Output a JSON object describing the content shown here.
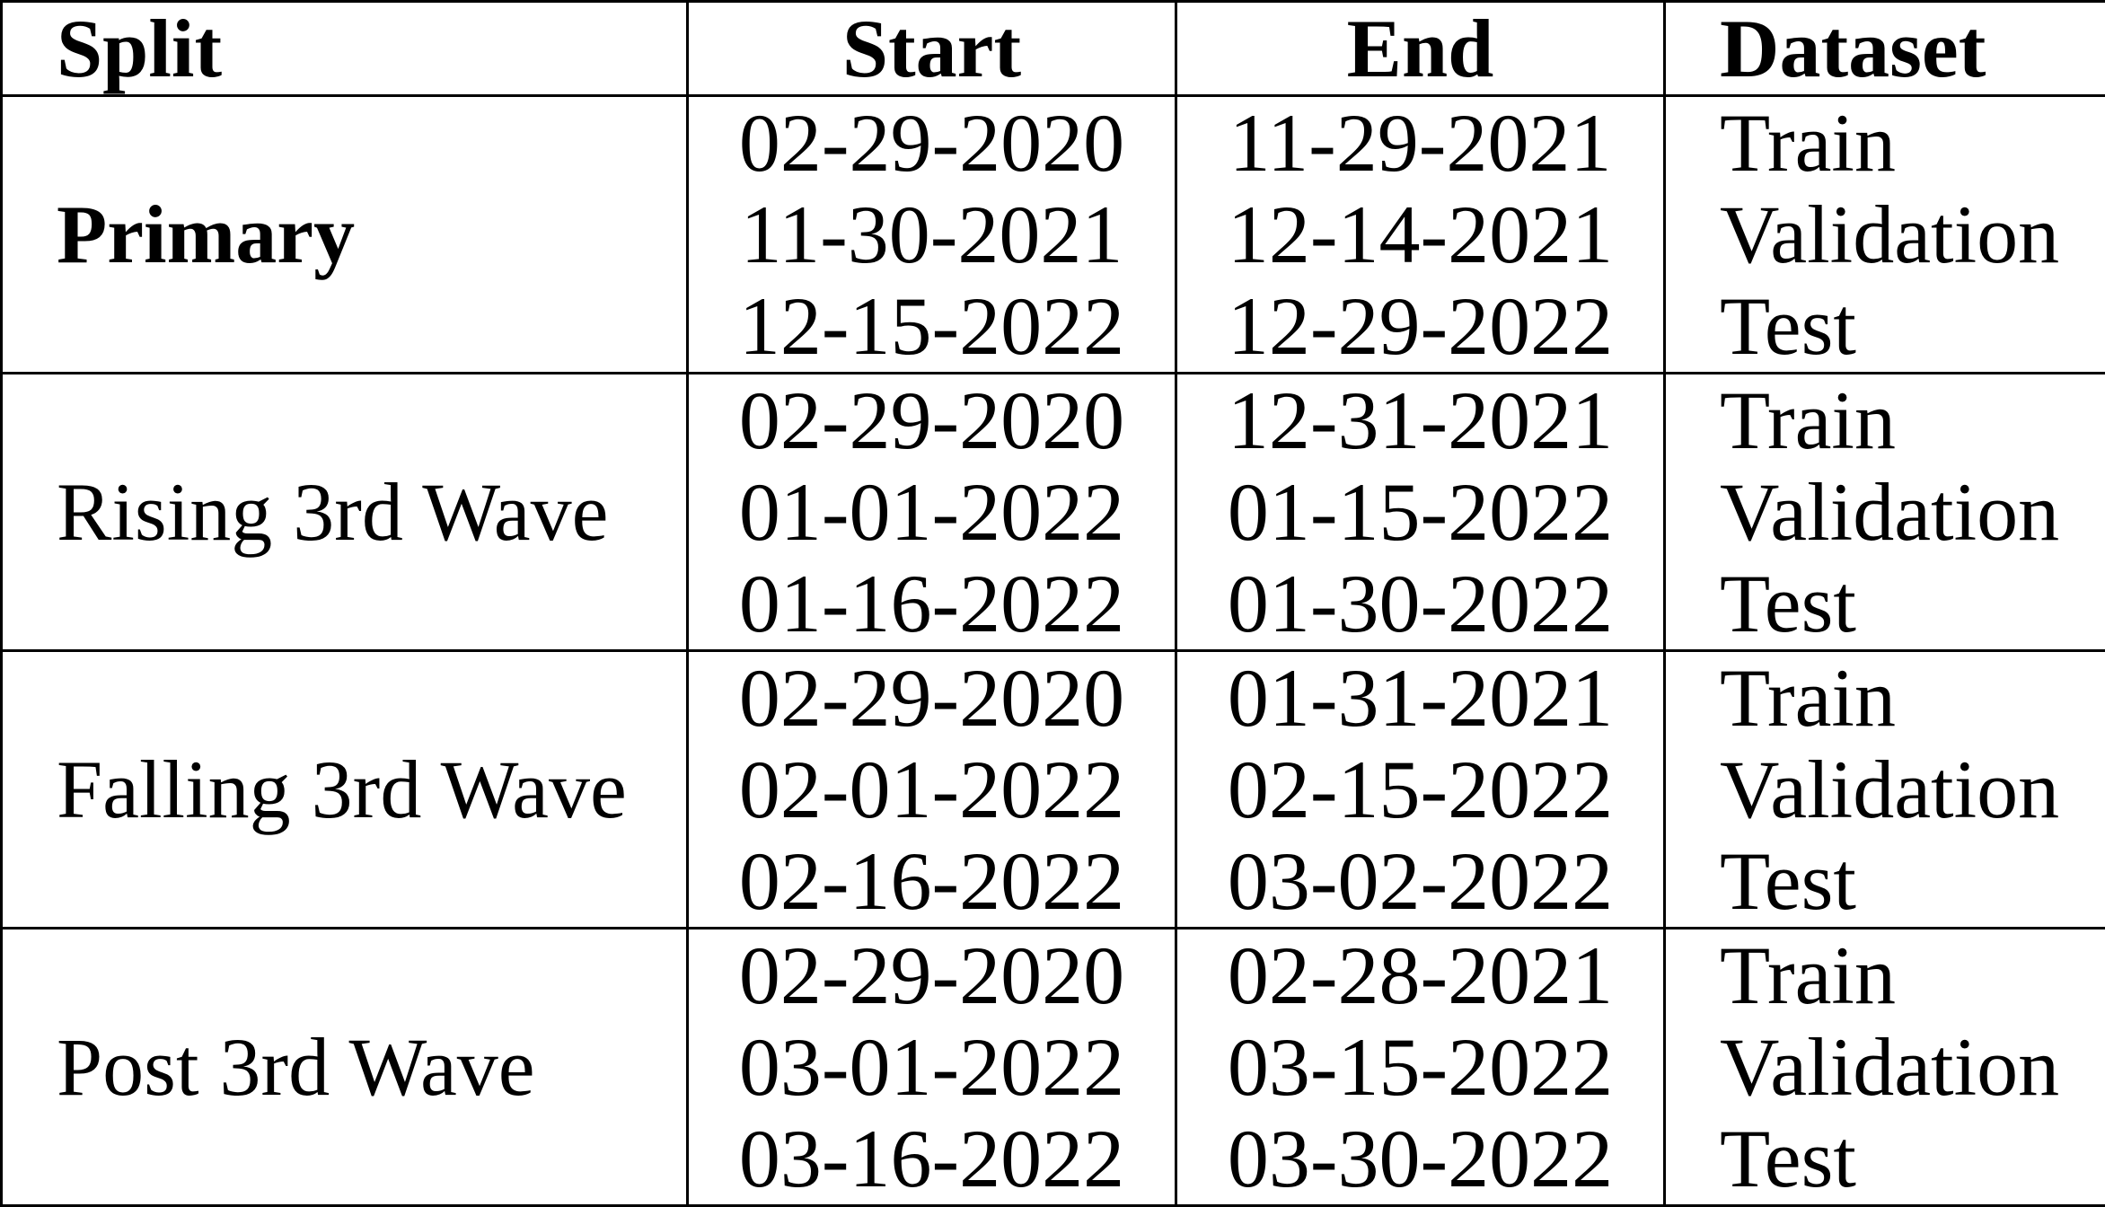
{
  "table": {
    "headers": {
      "split": "Split",
      "start": "Start",
      "end": "End",
      "dataset": "Dataset"
    },
    "groups": [
      {
        "split": "Primary",
        "start": [
          "02-29-2020",
          "11-30-2021",
          "12-15-2022"
        ],
        "end": [
          "11-29-2021",
          "12-14-2021",
          "12-29-2022"
        ],
        "dataset": [
          "Train",
          "Validation",
          "Test"
        ]
      },
      {
        "split": "Rising 3rd Wave",
        "start": [
          "02-29-2020",
          "01-01-2022",
          "01-16-2022"
        ],
        "end": [
          "12-31-2021",
          "01-15-2022",
          "01-30-2022"
        ],
        "dataset": [
          "Train",
          "Validation",
          "Test"
        ]
      },
      {
        "split": "Falling 3rd Wave",
        "start": [
          "02-29-2020",
          "02-01-2022",
          "02-16-2022"
        ],
        "end": [
          "01-31-2021",
          "02-15-2022",
          "03-02-2022"
        ],
        "dataset": [
          "Train",
          "Validation",
          "Test"
        ]
      },
      {
        "split": "Post 3rd Wave",
        "start": [
          "02-29-2020",
          "03-01-2022",
          "03-16-2022"
        ],
        "end": [
          "02-28-2021",
          "03-15-2022",
          "03-30-2022"
        ],
        "dataset": [
          "Train",
          "Validation",
          "Test"
        ]
      }
    ]
  }
}
